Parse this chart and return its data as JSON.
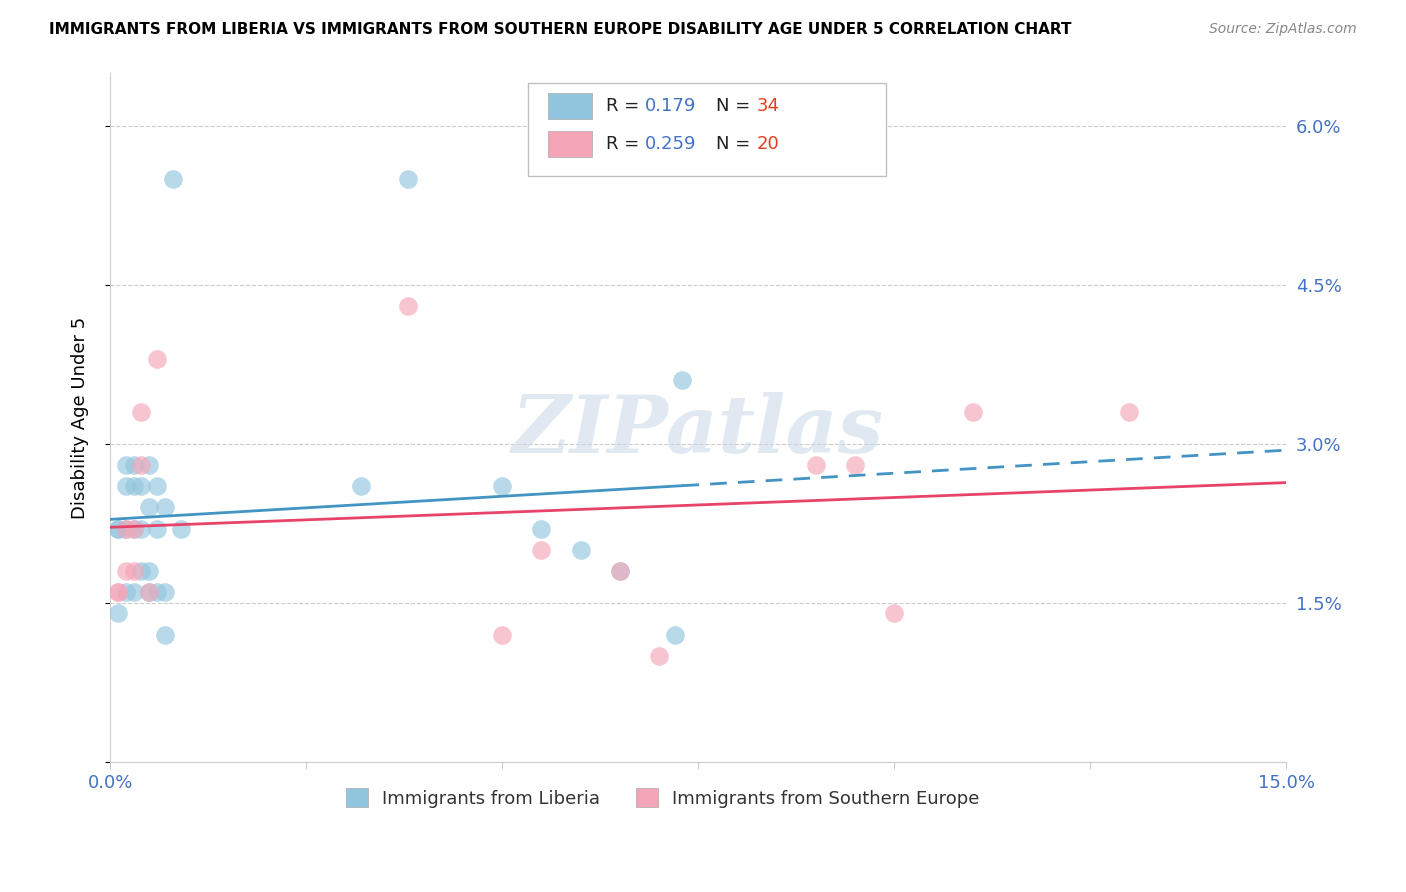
{
  "title": "IMMIGRANTS FROM LIBERIA VS IMMIGRANTS FROM SOUTHERN EUROPE DISABILITY AGE UNDER 5 CORRELATION CHART",
  "source": "Source: ZipAtlas.com",
  "ylabel": "Disability Age Under 5",
  "legend_label1": "Immigrants from Liberia",
  "legend_label2": "Immigrants from Southern Europe",
  "R1": 0.179,
  "N1": 34,
  "R2": 0.259,
  "N2": 20,
  "color1": "#92c5de",
  "color2": "#f4a6b8",
  "line_color1": "#4393c3",
  "line_color2": "#e8446a",
  "xlim": [
    0,
    0.15
  ],
  "ylim": [
    0,
    0.065
  ],
  "yticks": [
    0.0,
    0.015,
    0.03,
    0.045,
    0.06
  ],
  "ytick_labels": [
    "",
    "1.5%",
    "3.0%",
    "4.5%",
    "6.0%"
  ],
  "xticks": [
    0.0,
    0.025,
    0.05,
    0.075,
    0.1,
    0.125,
    0.15
  ],
  "xtick_labels": [
    "0.0%",
    "",
    "",
    "",
    "",
    "",
    "15.0%"
  ],
  "liberia_x": [
    0.001,
    0.001,
    0.001,
    0.002,
    0.002,
    0.002,
    0.002,
    0.003,
    0.003,
    0.003,
    0.003,
    0.004,
    0.004,
    0.004,
    0.005,
    0.005,
    0.005,
    0.005,
    0.006,
    0.006,
    0.006,
    0.007,
    0.007,
    0.007,
    0.008,
    0.009,
    0.032,
    0.038,
    0.05,
    0.055,
    0.06,
    0.065,
    0.072,
    0.073
  ],
  "liberia_y": [
    0.022,
    0.022,
    0.014,
    0.028,
    0.026,
    0.022,
    0.016,
    0.028,
    0.026,
    0.022,
    0.016,
    0.026,
    0.022,
    0.018,
    0.028,
    0.024,
    0.018,
    0.016,
    0.026,
    0.022,
    0.016,
    0.024,
    0.016,
    0.012,
    0.055,
    0.022,
    0.026,
    0.055,
    0.026,
    0.022,
    0.02,
    0.018,
    0.012,
    0.036
  ],
  "s_europe_x": [
    0.001,
    0.001,
    0.002,
    0.002,
    0.003,
    0.003,
    0.004,
    0.004,
    0.005,
    0.006,
    0.038,
    0.05,
    0.055,
    0.065,
    0.07,
    0.09,
    0.095,
    0.1,
    0.11,
    0.13
  ],
  "s_europe_y": [
    0.016,
    0.016,
    0.022,
    0.018,
    0.022,
    0.018,
    0.033,
    0.028,
    0.016,
    0.038,
    0.043,
    0.012,
    0.02,
    0.018,
    0.01,
    0.028,
    0.028,
    0.014,
    0.033,
    0.033
  ],
  "watermark": "ZIPatlas",
  "background_color": "#ffffff",
  "tick_color": "#4472c4",
  "grid_color": "#cccccc",
  "title_fontsize": 11,
  "label_fontsize": 13,
  "marker_size": 180
}
